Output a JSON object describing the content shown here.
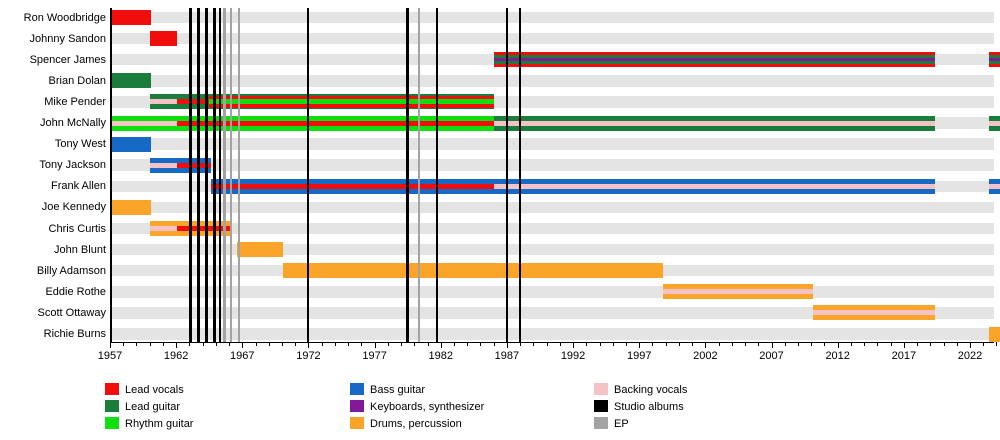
{
  "chart_data": {
    "type": "timeline",
    "title": "",
    "x_axis": {
      "year_start": 1957,
      "year_end": 2024.5,
      "major_tick_labels": [
        "1957",
        "1962",
        "1967",
        "1972",
        "1977",
        "1982",
        "1987",
        "1992",
        "1997",
        "2002",
        "2007",
        "2012",
        "2017",
        "2022"
      ],
      "minor_tick_step_years": 1,
      "grid": "off",
      "row_band_color": "#e4e4e4"
    },
    "roles": {
      "lead_vocals": {
        "label": "Lead vocals",
        "color": "#f10d0c"
      },
      "lead_guitar": {
        "label": "Lead guitar",
        "color": "#1b7d3c"
      },
      "rhythm_guitar": {
        "label": "Rhythm guitar",
        "color": "#0ee00e"
      },
      "bass_guitar": {
        "label": "Bass guitar",
        "color": "#1669c5"
      },
      "keyboards": {
        "label": "Keyboards, synthesizer",
        "color": "#801a98"
      },
      "drums": {
        "label": "Drums, percussion",
        "color": "#faa42a"
      },
      "backing_vocals": {
        "label": "Backing vocals",
        "color": "#f5c3c6"
      },
      "studio_albums": {
        "label": "Studio albums",
        "color": "#000000"
      },
      "ep": {
        "label": "EP",
        "color": "#a3a3a3"
      }
    },
    "members": [
      {
        "name": "Ron Woodbridge",
        "segments": [
          {
            "start": 1957.0,
            "end": 1960.1,
            "stripes": [
              "lead_vocals"
            ]
          }
        ]
      },
      {
        "name": "Johnny Sandon",
        "segments": [
          {
            "start": 1960.0,
            "end": 1962.1,
            "stripes": [
              "lead_vocals"
            ]
          }
        ]
      },
      {
        "name": "Spencer James",
        "segments": [
          {
            "start": 1986.0,
            "end": 2019.35,
            "stripes": [
              "lead_vocals",
              "lead_guitar",
              "keyboards",
              "lead_guitar",
              "lead_vocals"
            ]
          },
          {
            "start": 2023.4,
            "end": 2024.3,
            "stripes": [
              "lead_vocals",
              "lead_guitar",
              "keyboards",
              "lead_guitar",
              "lead_vocals"
            ]
          }
        ]
      },
      {
        "name": "Brian Dolan",
        "segments": [
          {
            "start": 1957.0,
            "end": 1960.1,
            "stripes": [
              "lead_guitar"
            ]
          }
        ]
      },
      {
        "name": "Mike Pender",
        "segments": [
          {
            "start": 1960.0,
            "end": 1962.1,
            "stripes": [
              "lead_guitar",
              "backing_vocals",
              "lead_guitar"
            ]
          },
          {
            "start": 1962.1,
            "end": 1964.5,
            "stripes": [
              "lead_guitar",
              "lead_vocals",
              "lead_guitar"
            ]
          },
          {
            "start": 1964.5,
            "end": 1986.0,
            "stripes": [
              "lead_guitar",
              "lead_vocals",
              "rhythm_guitar",
              "lead_vocals",
              "lead_guitar"
            ],
            "weights": [
              0.45,
              1.1,
              1.5,
              1.1,
              0.45
            ]
          }
        ]
      },
      {
        "name": "John McNally",
        "segments": [
          {
            "start": 1957.0,
            "end": 1962.1,
            "stripes": [
              "rhythm_guitar",
              "backing_vocals",
              "rhythm_guitar"
            ]
          },
          {
            "start": 1962.1,
            "end": 1986.0,
            "stripes": [
              "rhythm_guitar",
              "lead_vocals",
              "rhythm_guitar"
            ]
          },
          {
            "start": 1986.0,
            "end": 2019.35,
            "stripes": [
              "lead_guitar",
              "backing_vocals",
              "lead_guitar"
            ]
          },
          {
            "start": 2023.4,
            "end": 2024.3,
            "stripes": [
              "lead_guitar",
              "backing_vocals",
              "lead_guitar"
            ]
          }
        ]
      },
      {
        "name": "Tony West",
        "segments": [
          {
            "start": 1957.0,
            "end": 1960.1,
            "stripes": [
              "bass_guitar"
            ]
          }
        ]
      },
      {
        "name": "Tony Jackson",
        "segments": [
          {
            "start": 1960.0,
            "end": 1962.1,
            "stripes": [
              "bass_guitar",
              "backing_vocals",
              "bass_guitar"
            ]
          },
          {
            "start": 1962.1,
            "end": 1964.6,
            "stripes": [
              "bass_guitar",
              "lead_vocals",
              "bass_guitar"
            ]
          }
        ]
      },
      {
        "name": "Frank Allen",
        "segments": [
          {
            "start": 1964.6,
            "end": 1986.0,
            "stripes": [
              "bass_guitar",
              "lead_vocals",
              "bass_guitar"
            ]
          },
          {
            "start": 1986.0,
            "end": 2019.35,
            "stripes": [
              "bass_guitar",
              "backing_vocals",
              "bass_guitar"
            ]
          },
          {
            "start": 2023.4,
            "end": 2024.3,
            "stripes": [
              "bass_guitar",
              "backing_vocals",
              "bass_guitar"
            ]
          }
        ]
      },
      {
        "name": "Joe Kennedy",
        "segments": [
          {
            "start": 1957.0,
            "end": 1960.1,
            "stripes": [
              "drums"
            ]
          }
        ]
      },
      {
        "name": "Chris Curtis",
        "segments": [
          {
            "start": 1960.0,
            "end": 1962.1,
            "stripes": [
              "drums",
              "backing_vocals",
              "drums"
            ]
          },
          {
            "start": 1962.1,
            "end": 1966.2,
            "stripes": [
              "drums",
              "lead_vocals",
              "drums"
            ]
          }
        ]
      },
      {
        "name": "John Blunt",
        "segments": [
          {
            "start": 1966.6,
            "end": 1970.1,
            "stripes": [
              "drums"
            ]
          }
        ]
      },
      {
        "name": "Billy Adamson",
        "segments": [
          {
            "start": 1970.1,
            "end": 1998.8,
            "stripes": [
              "drums"
            ]
          }
        ]
      },
      {
        "name": "Eddie Rothe",
        "segments": [
          {
            "start": 1998.8,
            "end": 2010.1,
            "stripes": [
              "drums",
              "backing_vocals",
              "drums"
            ]
          }
        ]
      },
      {
        "name": "Scott Ottaway",
        "segments": [
          {
            "start": 2010.1,
            "end": 2019.35,
            "stripes": [
              "drums",
              "backing_vocals",
              "drums"
            ]
          }
        ]
      },
      {
        "name": "Richie Burns",
        "segments": [
          {
            "start": 2023.4,
            "end": 2024.3,
            "stripes": [
              "drums"
            ]
          }
        ]
      }
    ],
    "album_release_years": [
      1963.1,
      1963.7,
      1964.3,
      1964.9,
      1965.3,
      1971.95,
      1979.5,
      1981.7,
      1987.0,
      1988.0
    ],
    "ep_release_years": [
      1965.65,
      1966.15,
      1966.75,
      1980.35
    ]
  },
  "legend": {
    "order": [
      "lead_vocals",
      "lead_guitar",
      "rhythm_guitar",
      "bass_guitar",
      "keyboards",
      "drums",
      "backing_vocals",
      "studio_albums",
      "ep"
    ]
  }
}
